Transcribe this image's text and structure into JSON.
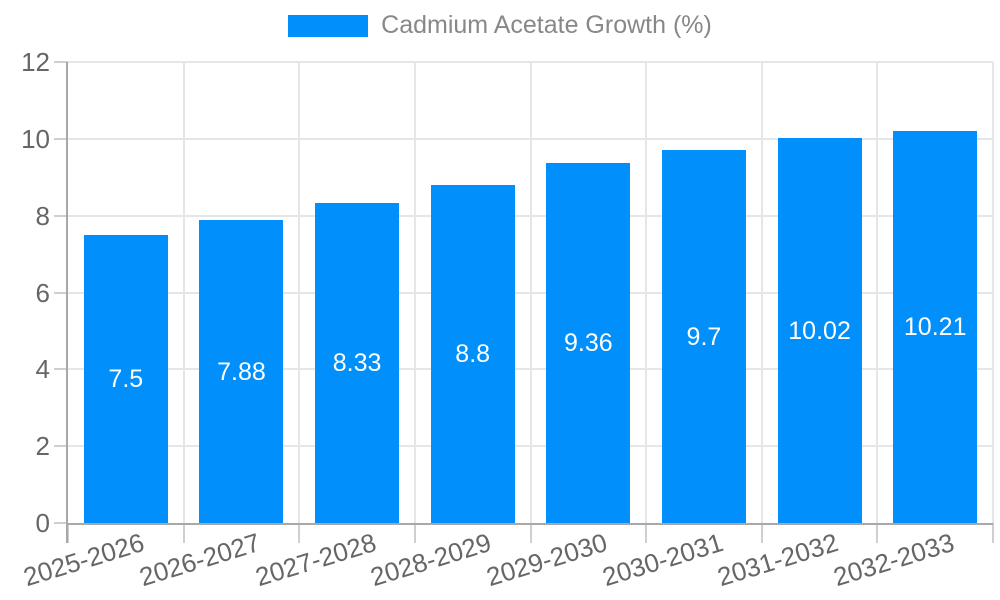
{
  "legend": {
    "label": "Cadmium Acetate Growth (%)"
  },
  "colors": {
    "bar": "#008FFB",
    "grid": "#e6e6e6",
    "axis_line": "#a8a8a8",
    "tick": "#cfcfcf",
    "axis_label_text": "#666666",
    "legend_text": "#888888",
    "value_label_text": "#ffffff",
    "background": "#ffffff"
  },
  "chart_data": {
    "type": "bar",
    "title": "",
    "xlabel": "",
    "ylabel": "",
    "legend_position": "top",
    "grid": true,
    "series_name": "Cadmium Acetate Growth (%)",
    "categories": [
      "2025-2026",
      "2026-2027",
      "2027-2028",
      "2028-2029",
      "2029-2030",
      "2030-2031",
      "2031-2032",
      "2032-2033"
    ],
    "values": [
      7.5,
      7.88,
      8.33,
      8.8,
      9.36,
      9.7,
      10.02,
      10.21
    ],
    "value_labels": [
      "7.5",
      "7.88",
      "8.33",
      "8.8",
      "9.36",
      "9.7",
      "10.02",
      "10.21"
    ],
    "ylim": [
      0,
      12
    ],
    "y_ticks": [
      0,
      2,
      4,
      6,
      8,
      10,
      12
    ]
  }
}
